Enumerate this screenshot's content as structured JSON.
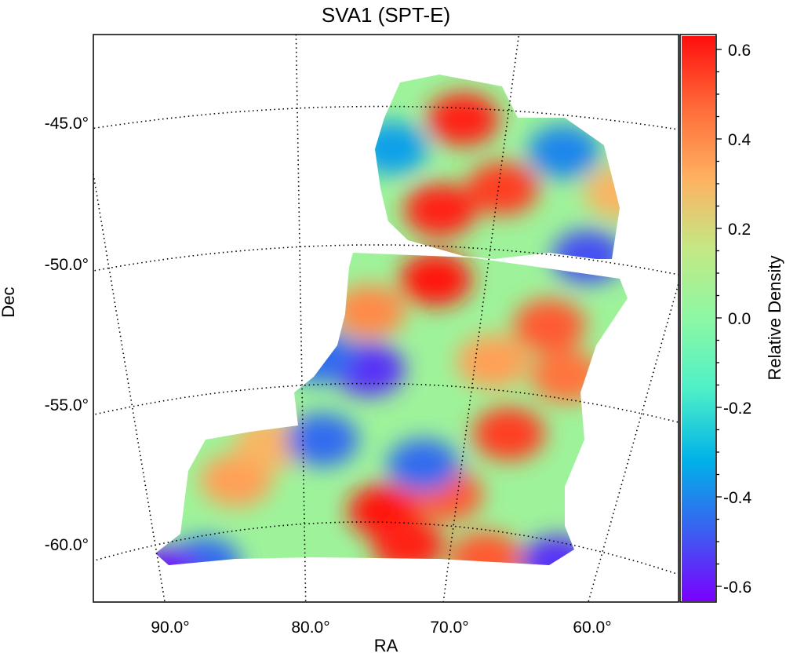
{
  "chart_data": {
    "type": "heatmap",
    "title": "SVA1 (SPT-E)",
    "xlabel": "RA",
    "ylabel": "Dec",
    "xticks": [
      "90.0°",
      "80.0°",
      "70.0°",
      "60.0°"
    ],
    "xtick_values": [
      90,
      80,
      70,
      60
    ],
    "yticks": [
      "-45.0°",
      "-50.0°",
      "-55.0°",
      "-60.0°"
    ],
    "ytick_values": [
      -45,
      -50,
      -55,
      -60
    ],
    "grid": true,
    "colorbar": {
      "label": "Relative Density",
      "clim": [
        -0.63,
        0.63
      ],
      "ticks": [
        "0.6",
        "0.4",
        "0.2",
        "0.0",
        "-0.2",
        "-0.4",
        "-0.6"
      ],
      "tick_values": [
        0.6,
        0.4,
        0.2,
        0.0,
        -0.2,
        -0.4,
        -0.6
      ],
      "colormap": [
        "#7a00ff",
        "#3a60f0",
        "#00b2e8",
        "#4ef0c8",
        "#8cf8a4",
        "#c4e884",
        "#ffb060",
        "#ff6a38",
        "#ff0e0e"
      ]
    },
    "background_value": 0.05,
    "density_features": [
      {
        "ra": 72.1,
        "dec": -45.4,
        "v": 0.6
      },
      {
        "ra": 72.8,
        "dec": -48.7,
        "v": 0.6
      },
      {
        "ra": 69.8,
        "dec": -47.8,
        "v": 0.55
      },
      {
        "ra": 72.7,
        "dec": -51.2,
        "v": 0.62
      },
      {
        "ra": 66.2,
        "dec": -52.5,
        "v": 0.5
      },
      {
        "ra": 67.4,
        "dec": -56.5,
        "v": 0.55
      },
      {
        "ra": 74.7,
        "dec": -59.6,
        "v": 0.62
      },
      {
        "ra": 72.9,
        "dec": -60.8,
        "v": 0.6
      },
      {
        "ra": 70.7,
        "dec": -58.9,
        "v": 0.5
      },
      {
        "ra": 76.2,
        "dec": -52.4,
        "v": 0.4
      },
      {
        "ra": 67.5,
        "dec": -61.0,
        "v": 0.5
      },
      {
        "ra": 84.3,
        "dec": -58.2,
        "v": 0.35
      },
      {
        "ra": 64.7,
        "dec": -54.2,
        "v": 0.45
      },
      {
        "ra": 69.0,
        "dec": -54.0,
        "v": 0.35
      },
      {
        "ra": 82.0,
        "dec": -57.0,
        "v": 0.3
      },
      {
        "ra": 64.0,
        "dec": -47.5,
        "v": 0.3
      },
      {
        "ra": 76.1,
        "dec": -54.5,
        "v": -0.55
      },
      {
        "ra": 78.8,
        "dec": -57.0,
        "v": -0.45
      },
      {
        "ra": 86.9,
        "dec": -61.0,
        "v": -0.45
      },
      {
        "ra": 67.1,
        "dec": -46.3,
        "v": -0.4
      },
      {
        "ra": 64.9,
        "dec": -49.9,
        "v": -0.5
      },
      {
        "ra": 72.4,
        "dec": -57.9,
        "v": -0.45
      },
      {
        "ra": 62.7,
        "dec": -60.7,
        "v": -0.55
      },
      {
        "ra": 75.4,
        "dec": -46.5,
        "v": -0.35
      },
      {
        "ra": 89.7,
        "dec": -61.1,
        "v": -0.6
      },
      {
        "ra": 79.0,
        "dec": -54.0,
        "v": -0.45
      }
    ]
  }
}
